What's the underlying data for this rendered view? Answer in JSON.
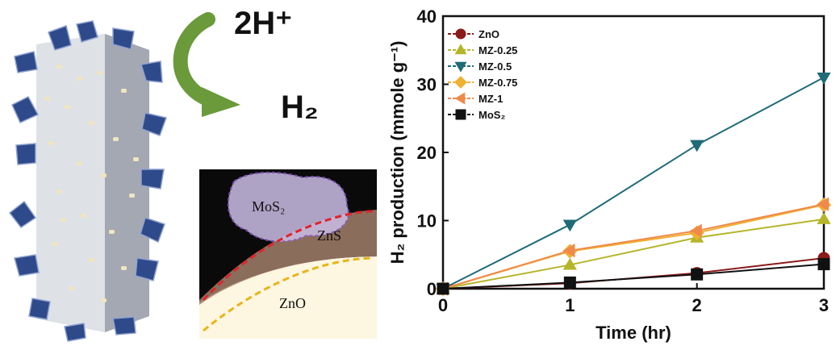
{
  "illustration": {
    "reactant": "2H⁺",
    "product": "H₂",
    "tem_labels": {
      "mos2": "MoS₂",
      "zns": "ZnS",
      "zno": "ZnO"
    },
    "colors": {
      "arrow": "#6a9a3a",
      "flakes": "#2f4a8a",
      "rod": "#c8cbd2",
      "mos2_outline": "#8a5cc9",
      "zns_outline": "#e0242a",
      "zno_outline": "#e8b418"
    }
  },
  "chart_data": {
    "type": "line",
    "xlabel": "Time (hr)",
    "ylabel": "H₂ production (mmole g⁻¹)",
    "xlim": [
      0,
      3
    ],
    "ylim": [
      0,
      40
    ],
    "xticks": [
      "0",
      "1",
      "2",
      "3"
    ],
    "yticks": [
      "0",
      "10",
      "20",
      "30",
      "40"
    ],
    "x": [
      0,
      1,
      2,
      3
    ],
    "legend_position": "top-left",
    "series": [
      {
        "name": "ZnO",
        "marker": "circle",
        "color": "#8b1a1a",
        "values": [
          0,
          0.8,
          2.3,
          4.5
        ]
      },
      {
        "name": "MZ-0.25",
        "marker": "triangle-up",
        "color": "#b5b52a",
        "values": [
          0,
          3.5,
          7.5,
          10.2
        ]
      },
      {
        "name": "MZ-0.5",
        "marker": "triangle-down",
        "color": "#1f6b78",
        "values": [
          0,
          9.4,
          21.1,
          31.0
        ]
      },
      {
        "name": "MZ-0.75",
        "marker": "diamond",
        "color": "#f0b030",
        "values": [
          0,
          5.5,
          8.2,
          12.3
        ]
      },
      {
        "name": "MZ-1",
        "marker": "triangle-left",
        "color": "#f08a4a",
        "values": [
          0,
          5.6,
          8.5,
          12.4
        ]
      },
      {
        "name": "MoS₂",
        "marker": "square",
        "color": "#111111",
        "values": [
          0,
          0.9,
          2.1,
          3.6
        ]
      }
    ]
  }
}
